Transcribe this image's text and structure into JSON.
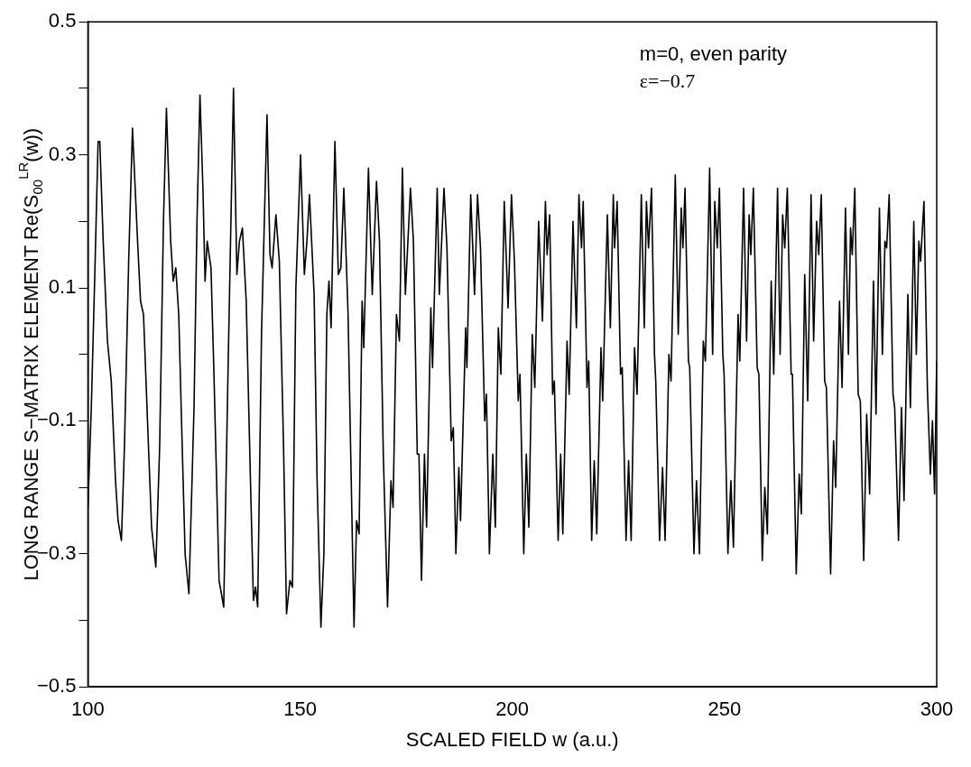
{
  "chart_data": {
    "type": "line",
    "xlabel": "SCALED FIELD w (a.u.)",
    "ylabel": "LONG RANGE S−MATRIX ELEMENT Re(S$_{00}$$^{LR}$(w))",
    "annotations": [
      "m=0, even parity",
      "ε=−0.7"
    ],
    "xlim": [
      100,
      300
    ],
    "xticks": [
      100,
      150,
      200,
      250,
      300
    ],
    "ylim": [
      -0.5,
      0.5
    ],
    "yticks": [
      {
        "value": -0.5,
        "label": "−0.5"
      },
      {
        "value": -0.4,
        "label": null
      },
      {
        "value": -0.3,
        "label": "−0.3"
      },
      {
        "value": -0.2,
        "label": null
      },
      {
        "value": -0.1,
        "label": "−0.1"
      },
      {
        "value": 0,
        "label": null
      },
      0.1,
      {
        "value": 0.2,
        "label": null
      },
      0.3,
      {
        "value": 0.4,
        "label": null
      },
      0.5
    ],
    "grid": false,
    "legend": false,
    "series": [
      {
        "color": "#000000",
        "x": [
          100,
          100.8,
          101.7,
          102.4,
          102.8,
          103.6,
          104.6,
          105.5,
          106.5,
          107.1,
          107.9,
          108.6,
          109.6,
          110.5,
          111.7,
          112.4,
          113.1,
          114.1,
          115,
          116,
          116.9,
          117.8,
          118.5,
          119.5,
          120.1,
          120.7,
          121.4,
          122.1,
          122.9,
          123.8,
          125,
          125.7,
          126.4,
          127.1,
          127.6,
          128.1,
          129,
          129.7,
          130.9,
          132,
          133,
          134.3,
          135.1,
          135.7,
          136.4,
          137.3,
          138.3,
          139,
          139.5,
          140,
          140.9,
          142.2,
          142.9,
          143.4,
          144.3,
          145.1,
          146.1,
          146.8,
          147.6,
          148.2,
          149,
          150.1,
          151,
          151.6,
          152.2,
          153.3,
          154,
          154.9,
          155.6,
          156.3,
          156.8,
          157.3,
          158.2,
          159,
          159.6,
          160.3,
          161.3,
          162.7,
          163.3,
          163.9,
          164.6,
          165,
          166.1,
          167,
          168,
          168.7,
          169.6,
          170.6,
          171.4,
          171.9,
          172.7,
          173.4,
          174.1,
          174.8,
          176,
          176.7,
          177.6,
          178,
          178.6,
          179.3,
          179.8,
          180.8,
          181.2,
          182.3,
          182.8,
          183.9,
          184.6,
          185.6,
          186.1,
          186.7,
          187.4,
          187.8,
          189,
          189.3,
          190.2,
          191.1,
          191.8,
          192.5,
          193.5,
          193.9,
          194.6,
          195.4,
          196,
          196.7,
          197.3,
          198.1,
          199,
          199.8,
          200.5,
          201.4,
          201.8,
          202.7,
          203.3,
          203.9,
          204.7,
          205.3,
          206.2,
          207.1,
          207.8,
          208.2,
          208.8,
          209.5,
          209.9,
          210.8,
          211.4,
          211.9,
          212.9,
          213.4,
          214.3,
          215.1,
          215.7,
          216.3,
          216.7,
          217.6,
          218,
          218.7,
          219.3,
          219.9,
          220.9,
          221.3,
          222.4,
          223.1,
          223.8,
          224.1,
          224.7,
          225.5,
          225.9,
          226.8,
          227.4,
          228,
          228.8,
          229.4,
          230.4,
          231.1,
          231.6,
          232.1,
          232.8,
          233.5,
          233.8,
          234.7,
          235.4,
          236,
          236.9,
          237.4,
          238.4,
          239.1,
          239.8,
          240.2,
          240.7,
          241.5,
          241.8,
          242.8,
          243.4,
          244.1,
          245,
          245.5,
          246.5,
          247.2,
          247.7,
          248.3,
          248.8,
          249.6,
          249.9,
          250.8,
          251.5,
          252.1,
          253.2,
          253.6,
          254.5,
          255.2,
          255.8,
          256.2,
          256.8,
          257.7,
          258.1,
          258.9,
          259.5,
          260.1,
          261,
          261.6,
          262.5,
          263.1,
          263.7,
          264.2,
          264.8,
          265.7,
          266,
          266.9,
          267.6,
          268.1,
          268.9,
          269.6,
          270.4,
          271,
          271.7,
          272.2,
          272.8,
          273.6,
          274,
          275,
          275.7,
          276.2,
          277.1,
          277.7,
          278.5,
          279.2,
          279.7,
          280.1,
          280.7,
          281.5,
          282,
          282.8,
          283.5,
          284.2,
          285.1,
          285.7,
          286.5,
          287.2,
          287.8,
          288.2,
          288.8,
          289.7,
          290.1,
          291,
          291.7,
          292.3,
          293.2,
          293.8,
          294.6,
          295.2,
          295.8,
          296.2,
          297,
          297.8,
          298.5,
          299,
          299.5,
          300
        ],
        "values": [
          -0.23,
          -0.08,
          0.14,
          0.32,
          0.32,
          0.17,
          0.02,
          -0.04,
          -0.19,
          -0.25,
          -0.28,
          -0.14,
          0.14,
          0.34,
          0.17,
          0.08,
          0.06,
          -0.11,
          -0.26,
          -0.32,
          -0.14,
          0.2,
          0.37,
          0.17,
          0.11,
          0.13,
          0.06,
          -0.11,
          -0.3,
          -0.36,
          -0.08,
          0.2,
          0.39,
          0.25,
          0.11,
          0.17,
          0.13,
          -0.03,
          -0.34,
          -0.38,
          -0.03,
          0.4,
          0.12,
          0.17,
          0.19,
          0.08,
          -0.19,
          -0.37,
          -0.35,
          -0.38,
          0.03,
          0.36,
          0.15,
          0.13,
          0.21,
          0.14,
          -0.14,
          -0.39,
          -0.34,
          -0.35,
          0.1,
          0.3,
          0.12,
          0.17,
          0.24,
          0.09,
          -0.19,
          -0.41,
          -0.3,
          0.06,
          0.11,
          0.04,
          0.32,
          0.12,
          0.13,
          0.25,
          0.06,
          -0.41,
          -0.25,
          -0.27,
          0.08,
          0.01,
          0.28,
          0.09,
          0.26,
          0.17,
          -0.15,
          -0.38,
          -0.19,
          -0.23,
          0.06,
          0.02,
          0.28,
          0.09,
          0.25,
          0.17,
          -0.15,
          -0.15,
          -0.34,
          -0.15,
          -0.26,
          0.07,
          -0.02,
          0.25,
          0.09,
          0.25,
          0.16,
          -0.13,
          -0.11,
          -0.3,
          -0.17,
          -0.25,
          0.04,
          -0.02,
          0.24,
          0.09,
          0.24,
          0.16,
          -0.1,
          -0.06,
          -0.3,
          -0.15,
          -0.26,
          0.04,
          -0.03,
          0.23,
          0.07,
          0.24,
          0.14,
          -0.07,
          -0.03,
          -0.3,
          -0.15,
          -0.26,
          0.03,
          -0.05,
          0.2,
          0.05,
          0.23,
          0.15,
          0.21,
          -0.06,
          -0.04,
          -0.28,
          -0.15,
          -0.27,
          0.02,
          -0.06,
          0.2,
          0.04,
          0.24,
          0.16,
          0.23,
          -0.05,
          -0.01,
          -0.28,
          -0.16,
          -0.27,
          0.01,
          -0.07,
          0.21,
          0.04,
          0.24,
          0.16,
          0.23,
          -0.03,
          -0.02,
          -0.28,
          -0.16,
          -0.28,
          0.01,
          -0.06,
          0.24,
          0.04,
          0.23,
          0.16,
          0.25,
          0,
          -0.04,
          -0.28,
          -0.17,
          -0.28,
          0,
          -0.04,
          0.27,
          0.03,
          0.22,
          0.16,
          0.25,
          -0.01,
          -0.02,
          -0.3,
          -0.19,
          -0.3,
          0.02,
          -0.01,
          0.28,
          0,
          0.23,
          0.16,
          0.25,
          0,
          -0.03,
          -0.3,
          -0.19,
          -0.29,
          0.06,
          -0.01,
          0.25,
          0.02,
          0.21,
          0.15,
          0.25,
          -0.02,
          -0.03,
          -0.31,
          -0.2,
          -0.27,
          0.11,
          -0.03,
          0.25,
          0,
          0.21,
          0.16,
          0.25,
          -0.03,
          -0.03,
          -0.33,
          -0.18,
          -0.24,
          0.12,
          -0.07,
          0.24,
          0.02,
          0.2,
          0.15,
          0.24,
          -0.04,
          -0.05,
          -0.33,
          -0.13,
          -0.2,
          0.08,
          -0.05,
          0.22,
          0,
          0.19,
          0.15,
          0.25,
          -0.06,
          -0.07,
          -0.31,
          -0.09,
          -0.21,
          0.11,
          -0.09,
          0.22,
          0,
          0.17,
          0.16,
          0.24,
          -0.06,
          -0.08,
          -0.28,
          -0.08,
          -0.22,
          0.09,
          -0.08,
          0.2,
          0,
          0.17,
          0.14,
          0.23,
          -0.05,
          -0.18,
          -0.1,
          -0.21,
          -0.01
        ]
      }
    ]
  }
}
